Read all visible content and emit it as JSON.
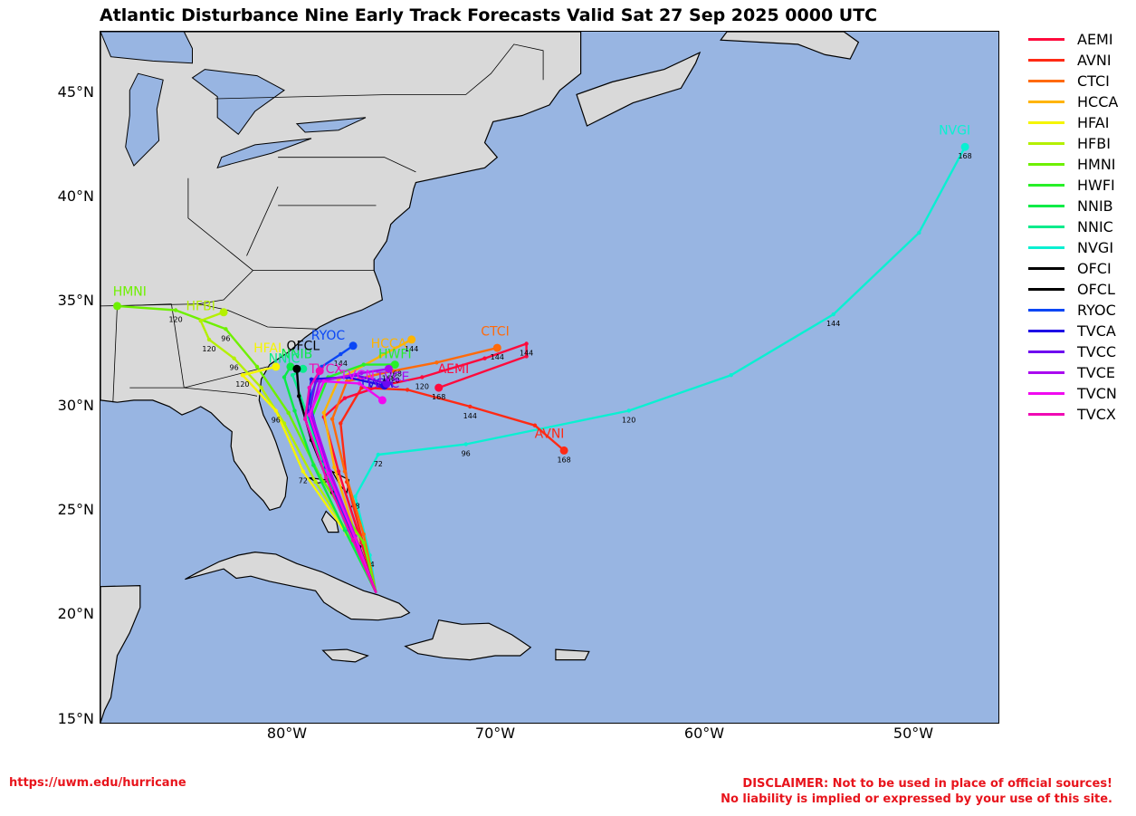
{
  "title": "Atlantic Disturbance Nine Early Track Forecasts Valid Sat 27 Sep 2025 0000 UTC",
  "lat_labels": [
    "45°N",
    "40°N",
    "35°N",
    "30°N",
    "25°N",
    "20°N",
    "15°N"
  ],
  "lon_labels": [
    "80°W",
    "70°W",
    "60°W",
    "50°W"
  ],
  "colors": {
    "ocean": "#98b5e2",
    "land": "#d9d9d9",
    "border": "#000000",
    "disclaimer": "#e8141c"
  },
  "models": [
    {
      "name": "AEMI",
      "color": "#ff0a3c"
    },
    {
      "name": "AVNI",
      "color": "#ff2a14"
    },
    {
      "name": "CTCI",
      "color": "#ff6a0a"
    },
    {
      "name": "HCCA",
      "color": "#ffb400"
    },
    {
      "name": "HFAI",
      "color": "#f5f500"
    },
    {
      "name": "HFBI",
      "color": "#b4f000"
    },
    {
      "name": "HMNI",
      "color": "#6ef000"
    },
    {
      "name": "HWFI",
      "color": "#28f028"
    },
    {
      "name": "NNIB",
      "color": "#0aeb46"
    },
    {
      "name": "NNIC",
      "color": "#0aeb8c"
    },
    {
      "name": "NVGI",
      "color": "#0af0d2"
    },
    {
      "name": "OFCI",
      "color": "#000000"
    },
    {
      "name": "OFCL",
      "color": "#000000"
    },
    {
      "name": "RYOC",
      "color": "#0a46f5"
    },
    {
      "name": "TVCA",
      "color": "#1e0ae6"
    },
    {
      "name": "TVCC",
      "color": "#6e0af0"
    },
    {
      "name": "TVCE",
      "color": "#aa0af0"
    },
    {
      "name": "TVCN",
      "color": "#f00af0"
    },
    {
      "name": "TVCX",
      "color": "#f00ab4"
    }
  ],
  "tracks": [
    {
      "name": "NVGI",
      "color": "#0af0d2",
      "points": [
        [
          21.2,
          -75.8
        ],
        [
          23.0,
          -76.1
        ],
        [
          25.8,
          -76.8
        ],
        [
          27.8,
          -75.7
        ],
        [
          28.3,
          -71.5
        ],
        [
          29.9,
          -63.7
        ],
        [
          31.6,
          -58.8
        ],
        [
          34.5,
          -53.9
        ],
        [
          38.4,
          -49.8
        ],
        [
          42.5,
          -47.6
        ]
      ],
      "hours": [
        24,
        48,
        72,
        96,
        120,
        144,
        168
      ],
      "hour_idx": [
        1,
        2,
        3,
        4,
        5,
        7,
        9
      ],
      "label_pos": [
        43.1,
        -48.1
      ]
    },
    {
      "name": "AVNI",
      "color": "#ff2a14",
      "points": [
        [
          21.2,
          -75.8
        ],
        [
          23.5,
          -76.4
        ],
        [
          26.5,
          -77.2
        ],
        [
          29.3,
          -77.5
        ],
        [
          31.0,
          -76.5
        ],
        [
          30.9,
          -74.3
        ],
        [
          30.1,
          -71.3
        ],
        [
          29.2,
          -68.2
        ],
        [
          28.0,
          -66.8
        ]
      ],
      "hours": [
        144,
        168
      ],
      "hour_idx": [
        6,
        8
      ],
      "label_pos": [
        28.6,
        -67.5
      ]
    },
    {
      "name": "AEMI",
      "color": "#ff0a3c",
      "points": [
        [
          21.2,
          -75.8
        ],
        [
          23.6,
          -76.5
        ],
        [
          27.0,
          -77.6
        ],
        [
          29.6,
          -78.3
        ],
        [
          30.5,
          -77.3
        ],
        [
          31.1,
          -75.5
        ],
        [
          31.5,
          -73.6
        ],
        [
          32.4,
          -70.6
        ],
        [
          33.1,
          -68.6
        ],
        [
          32.5,
          -68.6
        ],
        [
          31.0,
          -72.8
        ]
      ],
      "hours": [
        120,
        144,
        168
      ],
      "hour_idx": [
        6,
        8,
        10
      ],
      "label_pos": [
        31.7,
        -72.1
      ]
    },
    {
      "name": "CTCI",
      "color": "#ff6a0a",
      "points": [
        [
          21.2,
          -75.8
        ],
        [
          24.0,
          -76.4
        ],
        [
          27.0,
          -77.3
        ],
        [
          29.5,
          -77.9
        ],
        [
          31.3,
          -77.2
        ],
        [
          31.8,
          -75.0
        ],
        [
          32.2,
          -72.9
        ],
        [
          32.9,
          -70.0
        ]
      ],
      "hours": [
        120,
        144
      ],
      "hour_idx": [
        5,
        7
      ],
      "label_pos": [
        33.5,
        -70.1
      ]
    },
    {
      "name": "HCCA",
      "color": "#ffb400",
      "points": [
        [
          21.2,
          -75.8
        ],
        [
          24.0,
          -76.8
        ],
        [
          27.2,
          -77.8
        ],
        [
          29.8,
          -78.3
        ],
        [
          31.4,
          -77.6
        ],
        [
          32.5,
          -75.6
        ],
        [
          33.3,
          -74.1
        ]
      ],
      "hours": [
        144
      ],
      "hour_idx": [
        6
      ],
      "label_pos": [
        32.9,
        -75.2
      ]
    },
    {
      "name": "HWFI",
      "color": "#28f028",
      "points": [
        [
          21.2,
          -75.8
        ],
        [
          23.7,
          -76.8
        ],
        [
          26.8,
          -78.2
        ],
        [
          29.5,
          -78.9
        ],
        [
          31.5,
          -78.1
        ],
        [
          32.1,
          -76.4
        ],
        [
          32.1,
          -74.9
        ]
      ],
      "hours": [
        168
      ],
      "hour_idx": [
        6
      ],
      "label_pos": [
        32.4,
        -74.9
      ]
    },
    {
      "name": "HMNI",
      "color": "#6ef000",
      "points": [
        [
          21.2,
          -75.8
        ],
        [
          23.6,
          -76.4
        ],
        [
          26.8,
          -78.5
        ],
        [
          29.8,
          -80.0
        ],
        [
          32.0,
          -81.5
        ],
        [
          33.8,
          -83.0
        ],
        [
          34.7,
          -85.4
        ],
        [
          34.9,
          -88.2
        ]
      ],
      "hours": [
        96,
        120
      ],
      "hour_idx": [
        5,
        6
      ],
      "label_pos": [
        35.4,
        -87.6
      ]
    },
    {
      "name": "HFBI",
      "color": "#b4f000",
      "points": [
        [
          21.2,
          -75.8
        ],
        [
          24.0,
          -77.1
        ],
        [
          26.5,
          -78.7
        ],
        [
          29.3,
          -80.2
        ],
        [
          31.0,
          -81.3
        ],
        [
          32.4,
          -82.6
        ],
        [
          33.3,
          -83.8
        ],
        [
          34.2,
          -84.2
        ],
        [
          34.6,
          -83.1
        ]
      ],
      "hours": [
        96,
        120
      ],
      "hour_idx": [
        5,
        6
      ],
      "label_pos": [
        34.7,
        -84.2
      ]
    },
    {
      "name": "HFAI",
      "color": "#f5f500",
      "points": [
        [
          21.2,
          -75.8
        ],
        [
          24.0,
          -77.2
        ],
        [
          27.0,
          -79.3
        ],
        [
          29.9,
          -80.6
        ],
        [
          31.6,
          -82.2
        ],
        [
          32.0,
          -80.6
        ]
      ],
      "hours": [
        72,
        96,
        120
      ],
      "hour_idx": [
        2,
        3,
        4
      ],
      "label_pos": [
        32.7,
        -81.0
      ]
    },
    {
      "name": "NNIB",
      "color": "#0aeb46",
      "points": [
        [
          21.2,
          -75.8
        ],
        [
          24.2,
          -77.3
        ],
        [
          27.3,
          -78.8
        ],
        [
          29.9,
          -79.7
        ],
        [
          31.5,
          -80.2
        ],
        [
          32.0,
          -79.9
        ]
      ],
      "hours": [],
      "hour_idx": [],
      "label_pos": [
        32.4,
        -79.6
      ]
    },
    {
      "name": "NNIC",
      "color": "#0aeb8c",
      "points": [
        [
          21.2,
          -75.8
        ],
        [
          24.3,
          -77.2
        ],
        [
          27.5,
          -78.4
        ],
        [
          30.0,
          -79.2
        ],
        [
          31.6,
          -79.8
        ],
        [
          31.9,
          -79.3
        ]
      ],
      "hours": [],
      "hour_idx": [],
      "label_pos": [
        32.2,
        -80.2
      ]
    },
    {
      "name": "OFCL",
      "color": "#000000",
      "points": [
        [
          21.2,
          -75.8
        ],
        [
          23.4,
          -76.6
        ],
        [
          26.0,
          -77.9
        ],
        [
          28.5,
          -78.9
        ],
        [
          30.6,
          -79.5
        ],
        [
          31.9,
          -79.6
        ]
      ],
      "hours": [],
      "hour_idx": [],
      "label_pos": [
        32.8,
        -79.3
      ]
    },
    {
      "name": "RYOC",
      "color": "#0a46f5",
      "points": [
        [
          21.2,
          -75.8
        ],
        [
          24.2,
          -77.1
        ],
        [
          27.5,
          -78.3
        ],
        [
          30.4,
          -79.0
        ],
        [
          32.0,
          -78.4
        ],
        [
          32.6,
          -77.5
        ],
        [
          33.0,
          -76.9
        ]
      ],
      "hours": [
        144
      ],
      "hour_idx": [
        5
      ],
      "label_pos": [
        33.3,
        -78.1
      ]
    },
    {
      "name": "TVCA",
      "color": "#1e0ae6",
      "points": [
        [
          21.2,
          -75.8
        ],
        [
          24.0,
          -76.9
        ],
        [
          27.2,
          -78.2
        ],
        [
          29.9,
          -79.1
        ],
        [
          31.4,
          -78.9
        ],
        [
          31.5,
          -77.2
        ],
        [
          31.1,
          -75.4
        ]
      ],
      "hours": [],
      "hour_idx": [],
      "label_pos": [
        31.0,
        -75.8
      ]
    },
    {
      "name": "TVCC",
      "color": "#6e0af0",
      "points": [
        [
          21.2,
          -75.8
        ],
        [
          24.0,
          -76.9
        ],
        [
          27.1,
          -78.1
        ],
        [
          29.8,
          -79.0
        ],
        [
          31.3,
          -78.7
        ],
        [
          31.6,
          -76.8
        ],
        [
          31.2,
          -75.3
        ]
      ],
      "hours": [],
      "hour_idx": [],
      "label_pos": [
        31.0,
        -75.5
      ]
    },
    {
      "name": "TVCE",
      "color": "#aa0af0",
      "points": [
        [
          21.2,
          -75.8
        ],
        [
          23.9,
          -76.8
        ],
        [
          27.0,
          -78.0
        ],
        [
          29.8,
          -78.9
        ],
        [
          31.3,
          -78.5
        ],
        [
          31.7,
          -76.5
        ],
        [
          31.9,
          -75.2
        ]
      ],
      "hours": [
        168
      ],
      "hour_idx": [
        6
      ],
      "label_pos": [
        31.3,
        -75.0
      ]
    },
    {
      "name": "TVCN",
      "color": "#f00af0",
      "points": [
        [
          21.2,
          -75.8
        ],
        [
          23.8,
          -76.8
        ],
        [
          26.9,
          -78.1
        ],
        [
          29.7,
          -79.0
        ],
        [
          31.3,
          -78.3
        ],
        [
          31.2,
          -76.6
        ],
        [
          30.4,
          -75.5
        ]
      ],
      "hours": [],
      "hour_idx": [],
      "label_pos": [
        31.4,
        -76.7
      ]
    },
    {
      "name": "TVCX",
      "color": "#f00ab4",
      "points": [
        [
          21.2,
          -75.8
        ],
        [
          23.7,
          -76.9
        ],
        [
          26.7,
          -78.2
        ],
        [
          29.5,
          -79.2
        ],
        [
          31.0,
          -79.0
        ],
        [
          31.8,
          -78.5
        ]
      ],
      "hours": [],
      "hour_idx": [],
      "label_pos": [
        31.7,
        -78.2
      ]
    }
  ],
  "footer": {
    "url": "https://uwm.edu/hurricane",
    "disclaimer_line1": "DISCLAIMER: Not to be used in place of official sources!",
    "disclaimer_line2": "No liability is implied or expressed by your use of this site."
  }
}
